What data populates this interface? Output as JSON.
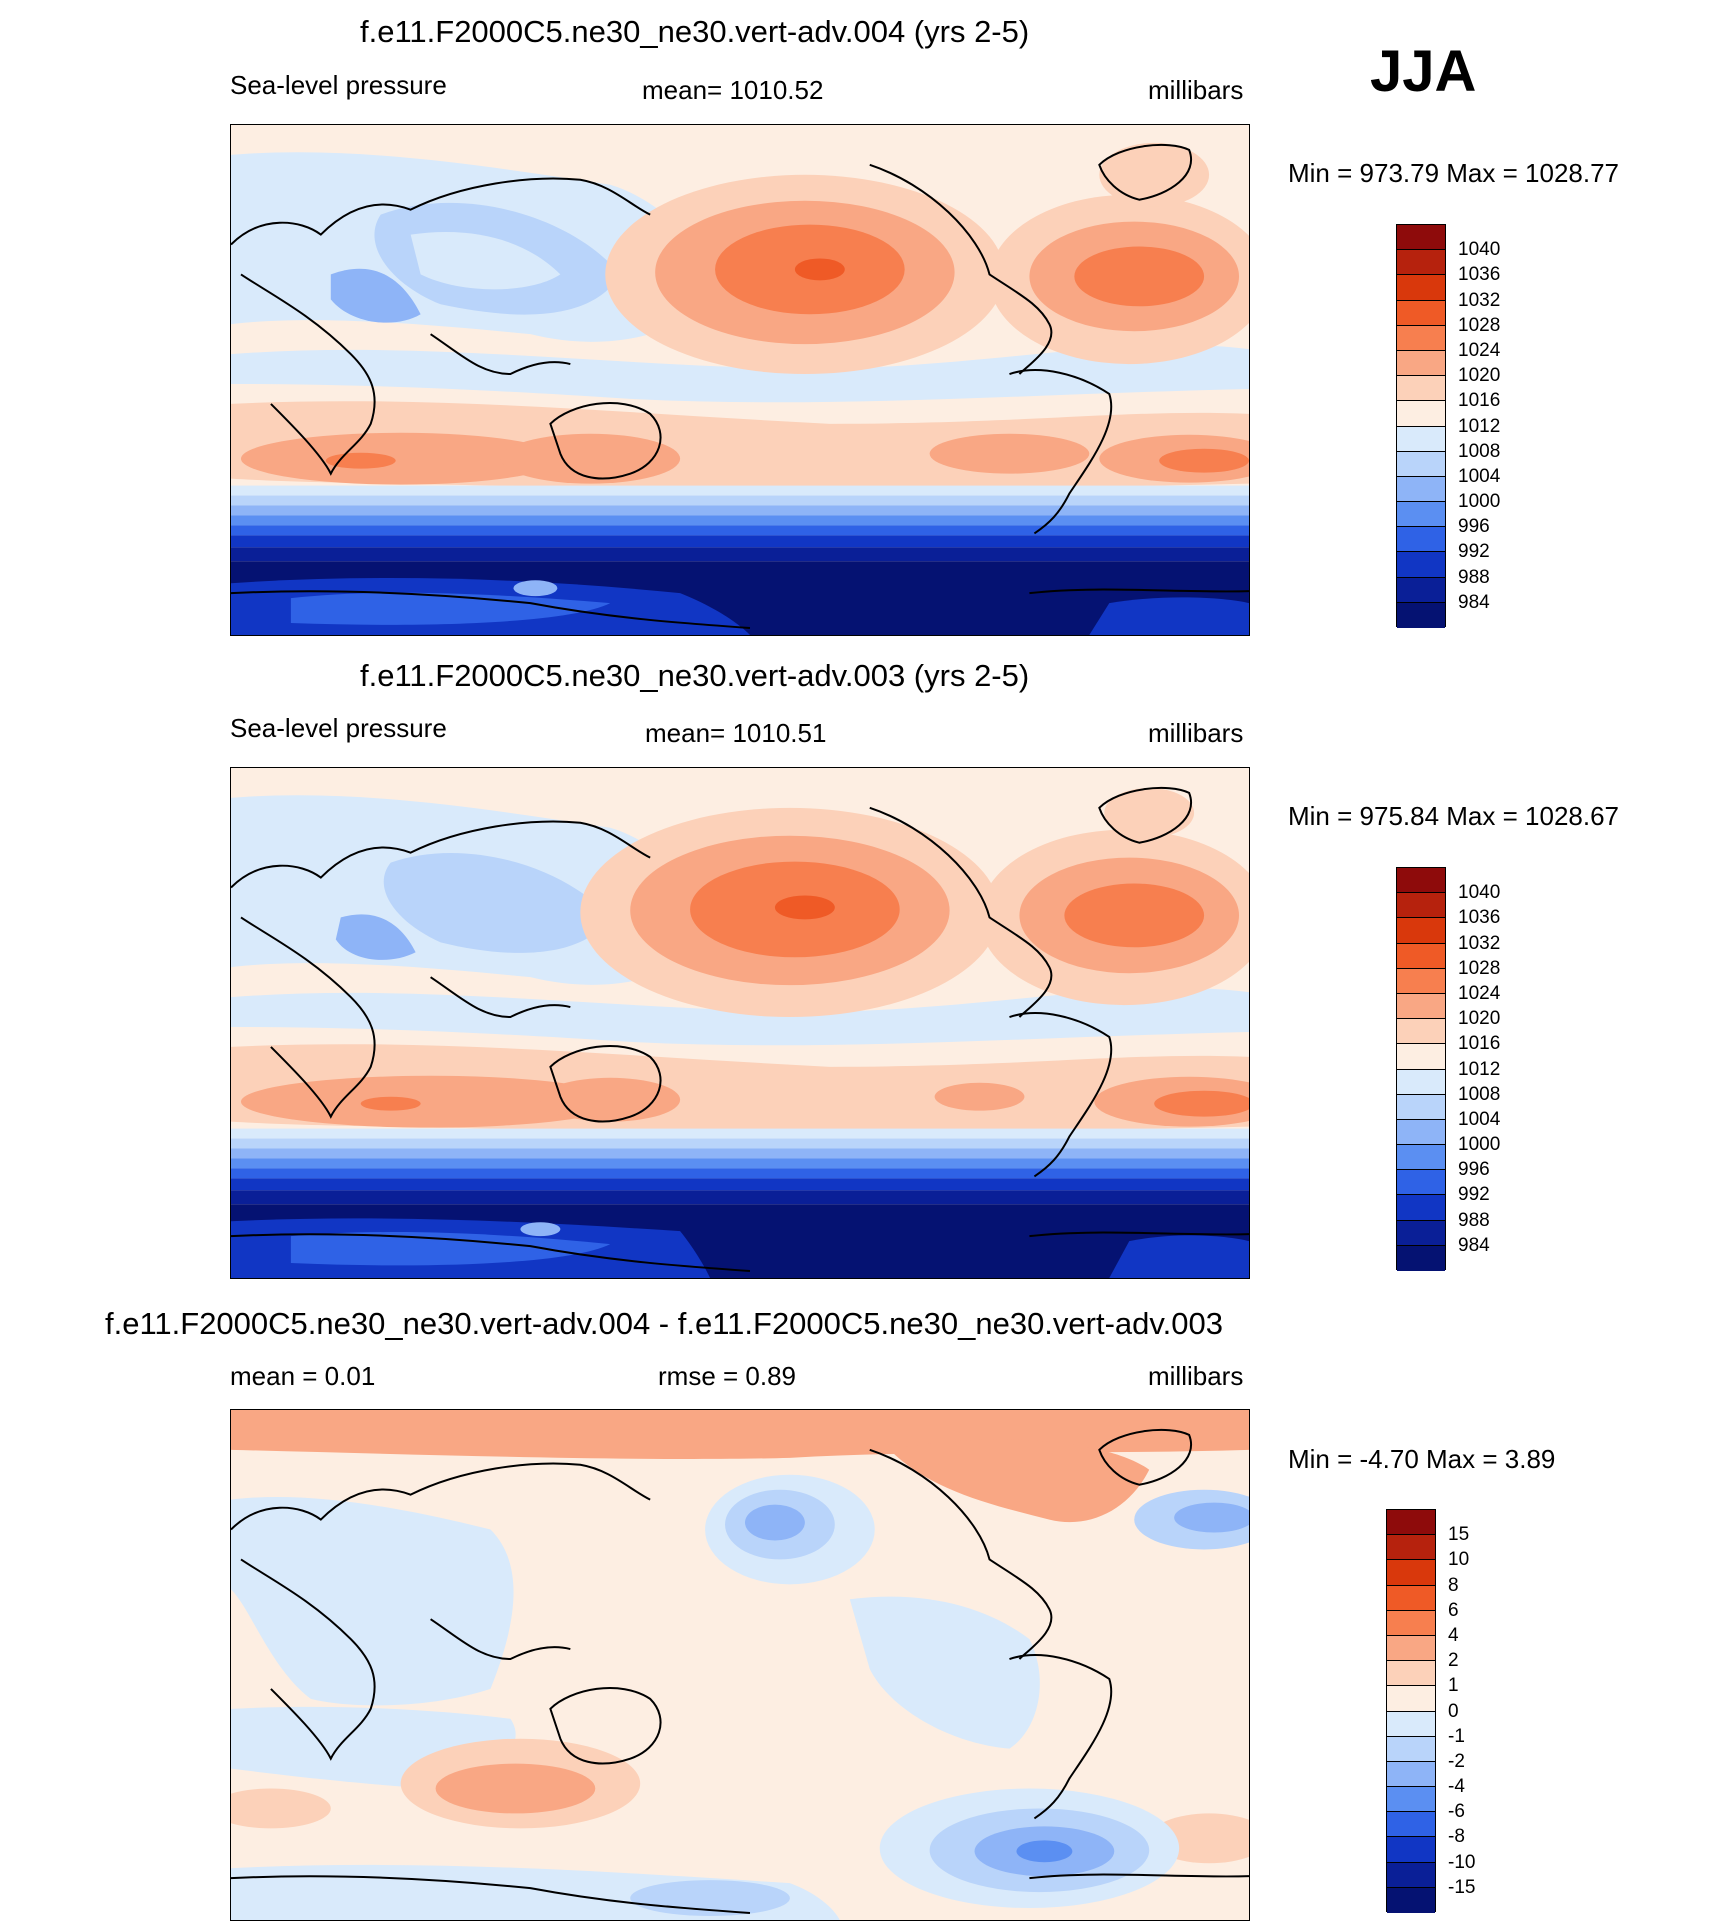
{
  "season": "JJA",
  "chart_data": [
    {
      "type": "heatmap",
      "title": "f.e11.F2000C5.ne30_ne30.vert-adv.004 (yrs 2-5)",
      "variable": "Sea-level pressure",
      "stat_label": "mean= 1010.52",
      "units": "millibars",
      "range_text": "Min = 973.79 Max = 1028.77",
      "min": 973.79,
      "max": 1028.77,
      "mean": 1010.52,
      "levels": [
        "1040",
        "1036",
        "1032",
        "1028",
        "1024",
        "1020",
        "1016",
        "1012",
        "1008",
        "1004",
        "1000",
        "996",
        "992",
        "988",
        "984"
      ],
      "colors": [
        "#8e0b0b",
        "#b6220d",
        "#d9380c",
        "#ef5a26",
        "#f77f4f",
        "#f9a784",
        "#fcd1b9",
        "#fdeee2",
        "#d9eafb",
        "#b9d4fa",
        "#8eb4f7",
        "#5b8ff2",
        "#2f62e6",
        "#1136c4",
        "#0a1f97",
        "#051272"
      ]
    },
    {
      "type": "heatmap",
      "title": "f.e11.F2000C5.ne30_ne30.vert-adv.003 (yrs 2-5)",
      "variable": "Sea-level pressure",
      "stat_label": "mean= 1010.51",
      "units": "millibars",
      "range_text": "Min = 975.84 Max = 1028.67",
      "min": 975.84,
      "max": 1028.67,
      "mean": 1010.51,
      "levels": [
        "1040",
        "1036",
        "1032",
        "1028",
        "1024",
        "1020",
        "1016",
        "1012",
        "1008",
        "1004",
        "1000",
        "996",
        "992",
        "988",
        "984"
      ],
      "colors": [
        "#8e0b0b",
        "#b6220d",
        "#d9380c",
        "#ef5a26",
        "#f77f4f",
        "#f9a784",
        "#fcd1b9",
        "#fdeee2",
        "#d9eafb",
        "#b9d4fa",
        "#8eb4f7",
        "#5b8ff2",
        "#2f62e6",
        "#1136c4",
        "#0a1f97",
        "#051272"
      ]
    },
    {
      "type": "heatmap",
      "title": "f.e11.F2000C5.ne30_ne30.vert-adv.004 - f.e11.F2000C5.ne30_ne30.vert-adv.003",
      "variable": "",
      "stat_label": "mean =   0.01",
      "stat_label2": "rmse =   0.89",
      "units": "millibars",
      "range_text": "Min =  -4.70 Max =   3.89",
      "min": -4.7,
      "max": 3.89,
      "mean": 0.01,
      "rmse": 0.89,
      "levels": [
        "15",
        "10",
        "8",
        "6",
        "4",
        "2",
        "1",
        "0",
        "-1",
        "-2",
        "-4",
        "-6",
        "-8",
        "-10",
        "-15"
      ],
      "colors": [
        "#8e0b0b",
        "#b6220d",
        "#d9380c",
        "#ef5a26",
        "#f77f4f",
        "#f9a784",
        "#fcd1b9",
        "#fdeee2",
        "#d9eafb",
        "#b9d4fa",
        "#8eb4f7",
        "#5b8ff2",
        "#2f62e6",
        "#1136c4",
        "#0a1f97",
        "#051272"
      ]
    }
  ]
}
